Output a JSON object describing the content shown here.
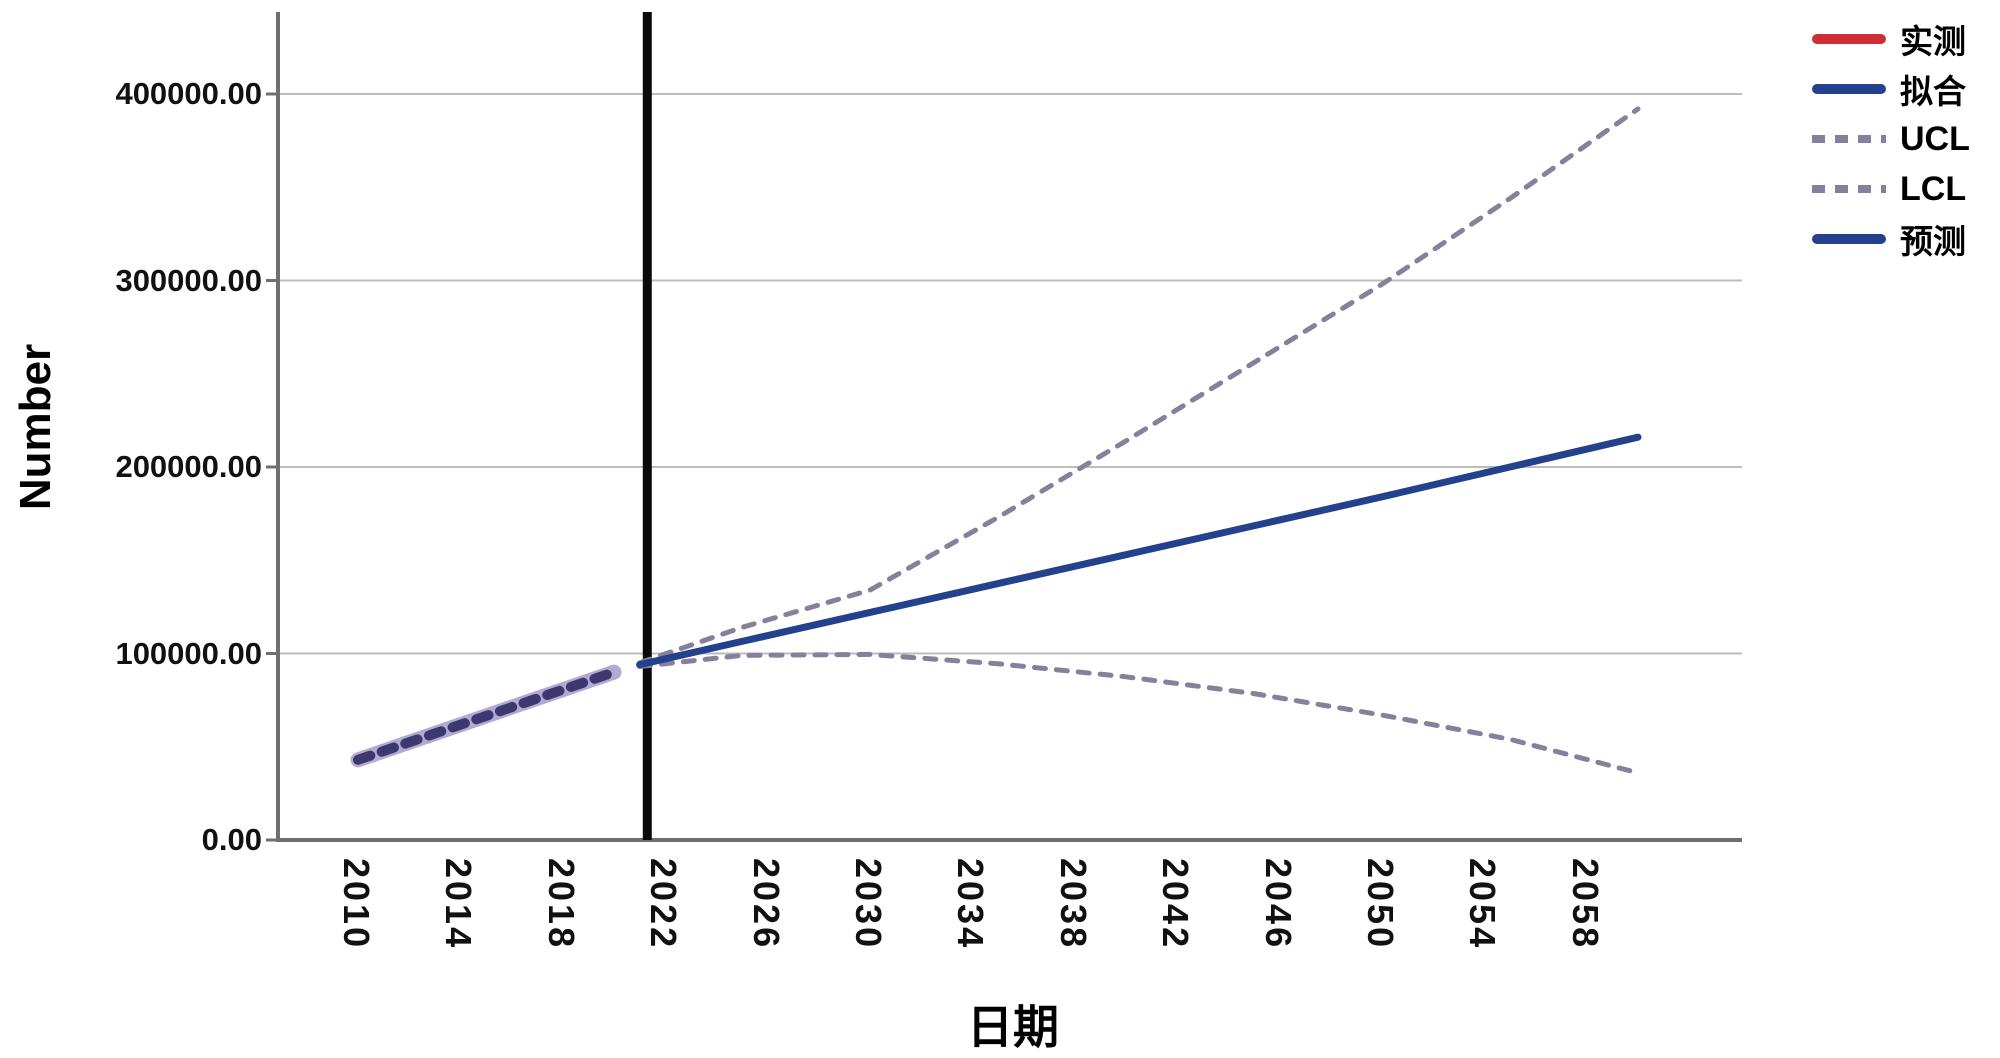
{
  "page": {
    "background": "#ffffff"
  },
  "legend": {
    "position": "top-right",
    "items": [
      {
        "label": "实测",
        "role": "observed",
        "style": "solid",
        "color": "#d02c35"
      },
      {
        "label": "拟合",
        "role": "fit",
        "style": "solid",
        "color": "#24418e"
      },
      {
        "label": "UCL",
        "role": "ucl",
        "style": "dashed",
        "color": "#86809c"
      },
      {
        "label": "LCL",
        "role": "lcl",
        "style": "dashed",
        "color": "#86809c"
      },
      {
        "label": "预测",
        "role": "forecast",
        "style": "solid",
        "color": "#24418e"
      }
    ]
  },
  "chart_data": {
    "type": "line",
    "title": "",
    "xlabel": "日期",
    "ylabel": "Number",
    "xlim": [
      2006.8,
      2064
    ],
    "ylim": [
      0,
      450000
    ],
    "grid": "horizontal-only",
    "grid_color": "#bdbdbd",
    "axis_color": "#6f6f6f",
    "y_ticks": [
      {
        "value": 0,
        "label": "0.00"
      },
      {
        "value": 100000,
        "label": "100000.00"
      },
      {
        "value": 200000,
        "label": "200000.00"
      },
      {
        "value": 300000,
        "label": "300000.00"
      },
      {
        "value": 400000,
        "label": "400000.00"
      }
    ],
    "x_ticks": [
      2010,
      2014,
      2018,
      2022,
      2026,
      2030,
      2034,
      2038,
      2042,
      2046,
      2050,
      2054,
      2058
    ],
    "forecast_start_line": {
      "year": 2021.3,
      "color": "#0a0a0a"
    },
    "series": [
      {
        "name": "实测",
        "role": "observed",
        "line": "solid",
        "color": "#d02c35",
        "x": [
          2010,
          2011,
          2012,
          2013,
          2014,
          2015,
          2016,
          2017,
          2018,
          2019,
          2020
        ],
        "values": [
          43000,
          47700,
          52400,
          57100,
          61800,
          66500,
          71200,
          75900,
          80600,
          85300,
          90000
        ],
        "overlap": "hidden beneath fitted line and confidence-band dashes"
      },
      {
        "name": "拟合",
        "role": "fit",
        "line": "solid",
        "color": "#24418e",
        "overlay_band_color": "#b2aad2",
        "x": [
          2010,
          2011,
          2012,
          2013,
          2014,
          2015,
          2016,
          2017,
          2018,
          2019,
          2020
        ],
        "values": [
          43000,
          47700,
          52400,
          57100,
          61800,
          66500,
          71200,
          75900,
          80600,
          85300,
          90000
        ]
      },
      {
        "name": "UCL",
        "role": "ucl",
        "line": "dashed",
        "color": "#86809c",
        "x": [
          2021,
          2025,
          2030,
          2035,
          2040,
          2045,
          2050,
          2055,
          2060
        ],
        "values": [
          95000,
          114000,
          134000,
          173000,
          214000,
          256000,
          298000,
          344000,
          392000
        ]
      },
      {
        "name": "LCL",
        "role": "lcl",
        "line": "dashed",
        "color": "#86809c",
        "x": [
          2021,
          2025,
          2030,
          2035,
          2040,
          2045,
          2050,
          2055,
          2060
        ],
        "values": [
          93000,
          99000,
          99500,
          94500,
          87500,
          78500,
          67000,
          54000,
          36000
        ]
      },
      {
        "name": "预测",
        "role": "forecast",
        "line": "solid",
        "color": "#24418e",
        "x": [
          2021,
          2025,
          2030,
          2035,
          2040,
          2045,
          2050,
          2055,
          2060
        ],
        "values": [
          94000,
          106500,
          122000,
          137500,
          153000,
          168500,
          184000,
          200000,
          216000
        ]
      }
    ]
  }
}
